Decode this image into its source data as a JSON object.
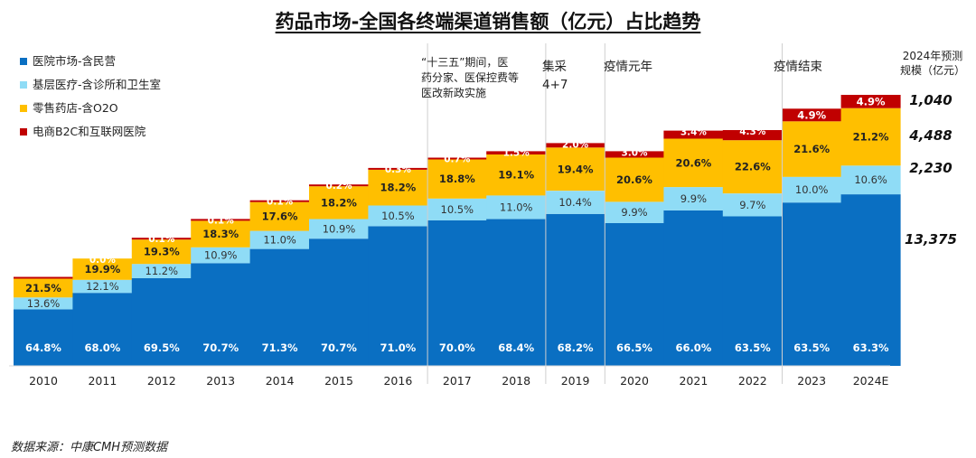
{
  "title": "药品市场-全国各终端渠道销售额（亿元）占比趋势",
  "source": "数据来源：中康CMH预测数据",
  "colors": {
    "hospital": "#0a6fc2",
    "primary": "#8fdcf6",
    "retail": "#ffbf00",
    "ecommerce": "#c00000"
  },
  "chart_data": {
    "type": "bar",
    "stacked": true,
    "title": "药品市场-全国各终端渠道销售额（亿元）占比趋势",
    "categories": [
      "2010",
      "2011",
      "2012",
      "2013",
      "2014",
      "2015",
      "2016",
      "2017",
      "2018",
      "2019",
      "2020",
      "2021",
      "2022",
      "2023",
      "2024E"
    ],
    "series": [
      {
        "name": "医院市场-含民营",
        "color": "#0a6fc2",
        "values": [
          64.8,
          68.0,
          69.5,
          70.7,
          71.3,
          70.7,
          71.0,
          70.0,
          68.4,
          68.2,
          66.5,
          66.0,
          63.5,
          63.5,
          63.3
        ],
        "labels": [
          "64.8%",
          "68.0%",
          "69.5%",
          "70.7%",
          "71.3%",
          "70.7%",
          "71.0%",
          "70.0%",
          "68.4%",
          "68.2%",
          "66.5%",
          "66.0%",
          "63.5%",
          "63.5%",
          "63.3%"
        ]
      },
      {
        "name": "基层医疗-含诊所和卫生室",
        "color": "#8fdcf6",
        "values": [
          13.6,
          12.1,
          11.2,
          10.9,
          11.0,
          10.9,
          10.5,
          10.5,
          11.0,
          10.4,
          9.9,
          9.9,
          9.7,
          10.0,
          10.6
        ],
        "labels": [
          "13.6%",
          "12.1%",
          "11.2%",
          "10.9%",
          "11.0%",
          "10.9%",
          "10.5%",
          "10.5%",
          "11.0%",
          "10.4%",
          "9.9%",
          "9.9%",
          "9.7%",
          "10.0%",
          "10.6%"
        ]
      },
      {
        "name": "零售药店-含O2O",
        "color": "#ffbf00",
        "values": [
          21.5,
          19.9,
          19.3,
          18.3,
          17.6,
          18.2,
          18.2,
          18.8,
          19.1,
          19.4,
          20.6,
          20.6,
          22.6,
          21.6,
          21.2
        ],
        "labels": [
          "21.5%",
          "19.9%",
          "19.3%",
          "18.3%",
          "17.6%",
          "18.2%",
          "18.2%",
          "18.8%",
          "19.1%",
          "19.4%",
          "20.6%",
          "20.6%",
          "22.6%",
          "21.6%",
          "21.2%"
        ]
      },
      {
        "name": "电商B2C和互联网医院",
        "color": "#c00000",
        "values": [
          0.1,
          0.0,
          0.1,
          0.1,
          0.1,
          0.2,
          0.3,
          0.7,
          1.5,
          2.0,
          3.0,
          3.4,
          4.3,
          4.9,
          4.9
        ],
        "labels": [
          "",
          "0.0%",
          "0.1%",
          "0.1%",
          "0.1%",
          "0.2%",
          "0.3%",
          "0.7%",
          "1.5%",
          "2.0%",
          "3.0%",
          "3.4%",
          "4.3%",
          "4.9%",
          "4.9%"
        ]
      }
    ],
    "totals_relative": [
      0.322,
      0.396,
      0.466,
      0.536,
      0.605,
      0.664,
      0.726,
      0.767,
      0.792,
      0.822,
      0.792,
      0.869,
      0.869,
      0.949,
      1.0
    ],
    "legend_position": "top-left",
    "annotations": [
      {
        "text": "“十三五”期间，医药分家、医保控费等医改新政实施",
        "lines": [
          "“十三五”期间，医",
          "药分家、医保控费等",
          "医改新政实施"
        ],
        "start": 7,
        "end": 8
      },
      {
        "text": "集采4+7",
        "lines": [
          "集采",
          "4+7"
        ],
        "start": 9,
        "end": 9
      },
      {
        "text": "疫情元年",
        "lines": [
          "疫情元年"
        ],
        "start": 10,
        "end": 12
      },
      {
        "text": "疫情结束",
        "lines": [
          "疫情结束"
        ],
        "start": 13,
        "end": 14
      }
    ],
    "forecast_scale": {
      "header": [
        "2024年预测",
        "规模（亿元）"
      ],
      "values": [
        "1,040",
        "4,488",
        "2,230",
        "13,375"
      ]
    }
  }
}
